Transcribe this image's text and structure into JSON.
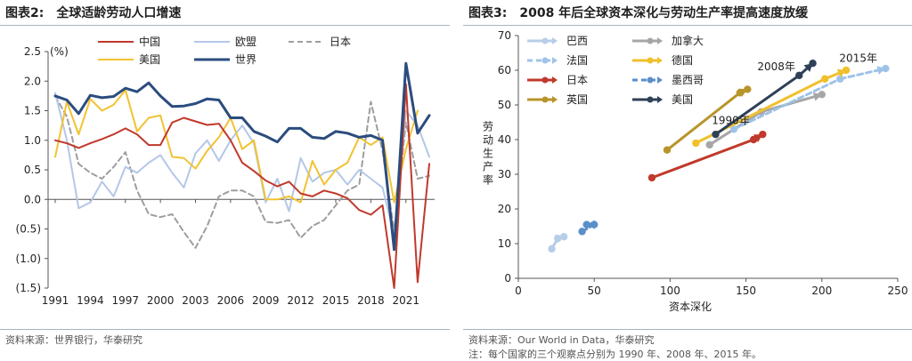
{
  "left": {
    "title_label": "图表2:",
    "title_text": "全球适龄劳动人口增速",
    "source": "资料来源：世界银行，华泰研究",
    "chart_data": {
      "type": "line",
      "unit_label": "(%)",
      "x": [
        1991,
        1992,
        1993,
        1994,
        1995,
        1996,
        1997,
        1998,
        1999,
        2000,
        2001,
        2002,
        2003,
        2004,
        2005,
        2006,
        2007,
        2008,
        2009,
        2010,
        2011,
        2012,
        2013,
        2014,
        2015,
        2016,
        2017,
        2018,
        2019,
        2020,
        2021,
        2022,
        2023
      ],
      "xticks": [
        1991,
        1994,
        1997,
        2000,
        2003,
        2006,
        2009,
        2012,
        2015,
        2018,
        2021
      ],
      "ylim": [
        -1.5,
        2.5
      ],
      "yticks": [
        2.5,
        2.0,
        1.5,
        1.0,
        0.5,
        0.0,
        -0.5,
        -1.0,
        -1.5
      ],
      "ytick_labels": [
        "2.5",
        "2.0",
        "1.5",
        "1.0",
        "0.5",
        "0.0",
        "(0.5)",
        "(1.0)",
        "(1.5)"
      ],
      "grid": false,
      "legend_position": "top",
      "series": [
        {
          "name": "中国",
          "color": "#c0392b",
          "style": "solid",
          "width": 2,
          "values": [
            1.0,
            0.95,
            0.87,
            0.95,
            1.02,
            1.1,
            1.2,
            1.1,
            0.92,
            0.92,
            1.3,
            1.38,
            1.32,
            1.26,
            1.28,
            1.0,
            0.62,
            0.48,
            0.32,
            0.22,
            0.3,
            0.1,
            0.05,
            0.15,
            0.1,
            0.02,
            -0.18,
            -0.26,
            -0.1,
            -1.5,
            1.95,
            -1.4,
            0.6
          ]
        },
        {
          "name": "欧盟",
          "color": "#b4c7e7",
          "style": "solid",
          "width": 2,
          "values": [
            1.8,
            1.0,
            -0.15,
            -0.05,
            0.3,
            0.05,
            0.55,
            0.45,
            0.62,
            0.75,
            0.45,
            0.2,
            0.78,
            1.0,
            0.65,
            1.0,
            1.25,
            0.95,
            -0.05,
            0.35,
            -0.2,
            0.7,
            0.3,
            0.45,
            0.5,
            0.25,
            0.5,
            0.35,
            0.2,
            -0.6,
            1.5,
            1.25,
            0.72
          ]
        },
        {
          "name": "日本",
          "color": "#9e9e9e",
          "style": "dashed",
          "width": 2,
          "values": [
            1.75,
            1.4,
            0.6,
            0.45,
            0.35,
            0.55,
            0.8,
            0.15,
            -0.25,
            -0.3,
            -0.25,
            -0.55,
            -0.82,
            -0.45,
            0.05,
            0.15,
            0.15,
            0.05,
            -0.38,
            -0.4,
            -0.35,
            -0.65,
            -0.45,
            -0.35,
            -0.1,
            0.15,
            0.25,
            1.65,
            0.82,
            -0.55,
            1.3,
            0.35,
            0.4
          ]
        },
        {
          "name": "美国",
          "color": "#f2c231",
          "style": "solid",
          "width": 2,
          "values": [
            0.72,
            1.65,
            1.1,
            1.7,
            1.5,
            1.6,
            1.85,
            1.15,
            1.38,
            1.42,
            0.72,
            0.7,
            0.52,
            0.82,
            1.05,
            1.38,
            0.85,
            1.0,
            0.0,
            0.0,
            0.05,
            -0.05,
            0.65,
            0.25,
            0.5,
            0.62,
            1.05,
            0.92,
            1.05,
            -0.05,
            0.85,
            1.5,
            null
          ]
        },
        {
          "name": "世界",
          "color": "#2b4c7e",
          "style": "solid",
          "width": 3,
          "values": [
            1.75,
            1.68,
            1.45,
            1.76,
            1.72,
            1.74,
            1.88,
            1.82,
            1.97,
            1.75,
            1.57,
            1.58,
            1.62,
            1.7,
            1.68,
            1.38,
            1.38,
            1.15,
            1.07,
            0.97,
            1.2,
            1.2,
            1.05,
            1.03,
            1.15,
            1.12,
            1.05,
            1.08,
            1.0,
            -0.85,
            2.3,
            1.12,
            1.42
          ]
        }
      ]
    }
  },
  "right": {
    "title_label": "图表3:",
    "title_text": "2008 年后全球资本深化与劳动生产率提高速度放缓",
    "source": "资料来源：Our World in Data，华泰研究",
    "note": "注：每个国家的三个观察点分别为 1990 年、2008 年、2015 年。",
    "chart_data": {
      "type": "scatter",
      "xlabel": "资本深化",
      "ylabel": "劳动生产率",
      "xlim": [
        0,
        250
      ],
      "ylim": [
        0,
        70
      ],
      "xticks": [
        0,
        50,
        100,
        150,
        200,
        250
      ],
      "yticks": [
        0,
        10,
        20,
        30,
        40,
        50,
        60,
        70
      ],
      "grid": false,
      "legend_position": "top-left",
      "annotations": [
        {
          "text": "1990年",
          "x": 140,
          "y": 44.5
        },
        {
          "text": "2008年",
          "x": 170,
          "y": 60
        },
        {
          "text": "2015年",
          "x": 224,
          "y": 62.5
        }
      ],
      "series": [
        {
          "name": "巴西",
          "color": "#b7cde8",
          "style": "solid",
          "points": [
            [
              22,
              8.5
            ],
            [
              26,
              11.5
            ],
            [
              30,
              12
            ]
          ]
        },
        {
          "name": "加拿大",
          "color": "#a6a6a6",
          "style": "solid",
          "points": [
            [
              126,
              38.5
            ],
            [
              160,
              48
            ],
            [
              200,
              53
            ]
          ]
        },
        {
          "name": "法国",
          "color": "#9fc3e8",
          "style": "dashed",
          "points": [
            [
              142,
              43
            ],
            [
              212,
              57.5
            ],
            [
              242,
              60.5
            ]
          ]
        },
        {
          "name": "德国",
          "color": "#f0c02c",
          "style": "solid",
          "points": [
            [
              117,
              39
            ],
            [
              202,
              57.5
            ],
            [
              216,
              60
            ]
          ]
        },
        {
          "name": "日本",
          "color": "#c0392b",
          "style": "solid",
          "points": [
            [
              88,
              29
            ],
            [
              155,
              40
            ],
            [
              161,
              41.5
            ]
          ]
        },
        {
          "name": "墨西哥",
          "color": "#5b8fc9",
          "style": "dashed",
          "points": [
            [
              42,
              13.5
            ],
            [
              50,
              15.5
            ],
            [
              45,
              15.5
            ]
          ]
        },
        {
          "name": "英国",
          "color": "#b8952a",
          "style": "solid",
          "points": [
            [
              98,
              37
            ],
            [
              146,
              53.5
            ],
            [
              151,
              54.5
            ]
          ]
        },
        {
          "name": "美国",
          "color": "#2f4057",
          "style": "solid",
          "points": [
            [
              130,
              41.5
            ],
            [
              185,
              58.5
            ],
            [
              194,
              62
            ]
          ]
        }
      ]
    }
  }
}
